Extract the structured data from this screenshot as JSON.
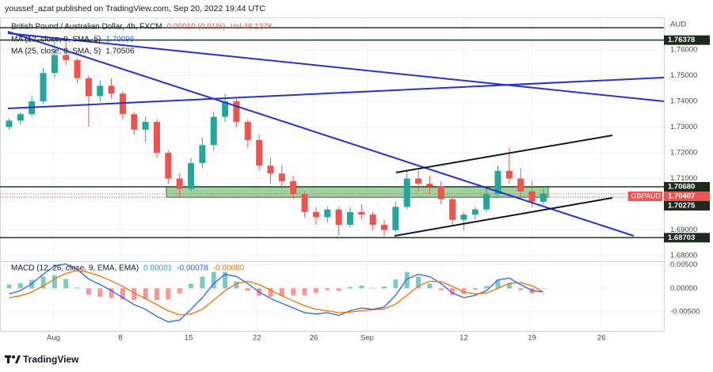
{
  "header": {
    "author_line": "youssef_azat published on TradingView.com, Sep 20, 2022 19:44 UTC"
  },
  "footer": {
    "brand": "TradingView"
  },
  "chart_data": {
    "type": "candlestick",
    "symbol": "British Pound / Australian Dollar, 4h, FXCM",
    "change": "0.00010 (0.01%)",
    "volume": "Vol 48.137K",
    "currency": "AUD",
    "up_color": "#26a69a",
    "down_color": "#ef5350",
    "moving_averages": [
      {
        "name": "MA (12, close, 0, SMA, 5)",
        "value": 1.70096,
        "color": "#2962ff"
      },
      {
        "name": "MA (25, close, 0, SMA, 5)",
        "value": 1.70506,
        "color": "#131722"
      }
    ],
    "xlim": [
      -0.8,
      57.6
    ],
    "xticks": [
      {
        "value": 3.9,
        "label": "Aug"
      },
      {
        "value": 9.8,
        "label": "8"
      },
      {
        "value": 15.8,
        "label": "15"
      },
      {
        "value": 21.8,
        "label": "22"
      },
      {
        "value": 26.8,
        "label": "26"
      },
      {
        "value": 31.5,
        "label": "Sep"
      },
      {
        "value": 40,
        "label": "12"
      },
      {
        "value": 46,
        "label": "19"
      },
      {
        "value": 52.1,
        "label": "26"
      }
    ],
    "ylim": [
      1.6779,
      1.7726
    ],
    "yticks": [
      {
        "value": 1.68,
        "label": "1.68000"
      },
      {
        "value": 1.69,
        "label": "1.69000"
      },
      {
        "value": 1.71,
        "label": "1.71000"
      },
      {
        "value": 1.72,
        "label": "1.72000"
      },
      {
        "value": 1.73,
        "label": "1.73000"
      },
      {
        "value": 1.74,
        "label": "1.74000"
      },
      {
        "value": 1.75,
        "label": "1.75000"
      },
      {
        "value": 1.76,
        "label": "1.76000"
      }
    ],
    "grid": true,
    "levels": [
      {
        "value": 1.76378
      },
      {
        "value": 1.7068,
        "label": "1.70680"
      },
      {
        "value": 1.70275
      },
      {
        "value": 1.68703
      }
    ],
    "last_price": {
      "name": "GBPAUD",
      "value": 1.70407,
      "color": "#ef5350"
    },
    "ohlc": [
      [
        1.73,
        1.7335,
        1.729,
        1.7325
      ],
      [
        1.7325,
        1.736,
        1.731,
        1.735
      ],
      [
        1.735,
        1.742,
        1.734,
        1.74
      ],
      [
        1.74,
        1.753,
        1.739,
        1.751
      ],
      [
        1.751,
        1.764,
        1.749,
        1.758
      ],
      [
        1.758,
        1.763,
        1.754,
        1.756
      ],
      [
        1.756,
        1.757,
        1.747,
        1.749
      ],
      [
        1.749,
        1.75,
        1.73,
        1.742
      ],
      [
        1.742,
        1.748,
        1.74,
        1.746
      ],
      [
        1.746,
        1.749,
        1.741,
        1.743
      ],
      [
        1.743,
        1.744,
        1.733,
        1.735
      ],
      [
        1.735,
        1.736,
        1.727,
        1.729
      ],
      [
        1.729,
        1.734,
        1.724,
        1.732
      ],
      [
        1.732,
        1.733,
        1.718,
        1.72
      ],
      [
        1.72,
        1.721,
        1.708,
        1.71
      ],
      [
        1.71,
        1.712,
        1.703,
        1.706
      ],
      [
        1.706,
        1.718,
        1.705,
        1.716
      ],
      [
        1.716,
        1.726,
        1.714,
        1.723
      ],
      [
        1.723,
        1.736,
        1.721,
        1.734
      ],
      [
        1.734,
        1.743,
        1.732,
        1.74
      ],
      [
        1.74,
        1.741,
        1.73,
        1.732
      ],
      [
        1.732,
        1.733,
        1.722,
        1.725
      ],
      [
        1.725,
        1.727,
        1.713,
        1.715
      ],
      [
        1.715,
        1.718,
        1.708,
        1.712
      ],
      [
        1.712,
        1.715,
        1.706,
        1.709
      ],
      [
        1.709,
        1.711,
        1.702,
        1.704
      ],
      [
        1.704,
        1.705,
        1.695,
        1.697
      ],
      [
        1.697,
        1.699,
        1.692,
        1.695
      ],
      [
        1.695,
        1.699,
        1.693,
        1.698
      ],
      [
        1.698,
        1.699,
        1.688,
        1.692
      ],
      [
        1.692,
        1.699,
        1.691,
        1.697
      ],
      [
        1.697,
        1.7,
        1.694,
        1.696
      ],
      [
        1.696,
        1.697,
        1.69,
        1.692
      ],
      [
        1.692,
        1.694,
        1.687,
        1.69
      ],
      [
        1.69,
        1.701,
        1.689,
        1.699
      ],
      [
        1.699,
        1.713,
        1.698,
        1.71
      ],
      [
        1.71,
        1.713,
        1.705,
        1.708
      ],
      [
        1.708,
        1.711,
        1.704,
        1.707
      ],
      [
        1.707,
        1.709,
        1.7,
        1.702
      ],
      [
        1.702,
        1.703,
        1.692,
        1.694
      ],
      [
        1.694,
        1.697,
        1.69,
        1.696
      ],
      [
        1.696,
        1.699,
        1.694,
        1.698
      ],
      [
        1.698,
        1.706,
        1.697,
        1.704
      ],
      [
        1.704,
        1.715,
        1.703,
        1.713
      ],
      [
        1.713,
        1.722,
        1.708,
        1.71
      ],
      [
        1.71,
        1.714,
        1.702,
        1.705
      ],
      [
        1.705,
        1.709,
        1.699,
        1.701
      ],
      [
        1.701,
        1.706,
        1.7,
        1.7041
      ]
    ],
    "macd": {
      "title": "MACD (12, 26, close, 9, EMA, EMA)",
      "legend_values": [
        1e-05,
        -0.00078,
        {
          "value": -0.0008,
          "label": "-0.00080"
        }
      ],
      "ylim": [
        -0.0091,
        0.0058
      ],
      "yticks": [
        {
          "value": 0.005,
          "label": "0.00500"
        },
        {
          "value": 0,
          "label": "0.00000"
        },
        {
          "value": -0.005,
          "label": "-0.00500"
        }
      ],
      "histogram_colors": [
        "#26a69a",
        "#ef5350"
      ],
      "histogram": [
        0.0008,
        0.0011,
        0.0018,
        0.0025,
        0.0028,
        0.002,
        0.0002,
        -0.0014,
        -0.0018,
        -0.0021,
        -0.0024,
        -0.0025,
        -0.0023,
        -0.0025,
        -0.0024,
        -0.0011,
        0.001,
        0.0025,
        0.0035,
        0.0035,
        0.0015,
        -0.0005,
        -0.0016,
        -0.0018,
        -0.0016,
        -0.0015,
        -0.0015,
        -0.001,
        -0.0004,
        -0.0006,
        0.0003,
        0.0006,
        0.0001,
        0.0004,
        0.0019,
        0.0035,
        0.0025,
        0.001,
        -0.0004,
        -0.0014,
        -0.0012,
        -0.0003,
        0.0005,
        0.0018,
        0.0011,
        -0.0004,
        -0.0011,
        1e-05
      ],
      "macd_color": "#2962ff",
      "macd_line": [
        -0.0012,
        -0.0005,
        0.001,
        0.003,
        0.0048,
        0.0052,
        0.004,
        0.002,
        0.0008,
        -0.0005,
        -0.002,
        -0.0035,
        -0.0045,
        -0.006,
        -0.0072,
        -0.0068,
        -0.0045,
        -0.002,
        0.001,
        0.003,
        0.0025,
        0.001,
        -0.0008,
        -0.0022,
        -0.0032,
        -0.0042,
        -0.0052,
        -0.0055,
        -0.0052,
        -0.0058,
        -0.0048,
        -0.0042,
        -0.0045,
        -0.004,
        -0.0015,
        0.002,
        0.003,
        0.0025,
        0.001,
        -0.001,
        -0.002,
        -0.0015,
        -0.0005,
        0.0018,
        0.0022,
        0.0008,
        -0.0005,
        -0.00078
      ],
      "signal_color": "#ff6d00",
      "signal_line": [
        -0.002,
        -0.0016,
        -0.0008,
        0.0005,
        0.002,
        0.0032,
        0.0038,
        0.0034,
        0.0026,
        0.0016,
        0.0004,
        -0.001,
        -0.0022,
        -0.0035,
        -0.0048,
        -0.0057,
        -0.0055,
        -0.0045,
        -0.0025,
        -0.0005,
        0.001,
        0.0015,
        0.0008,
        -0.0004,
        -0.0016,
        -0.0027,
        -0.0037,
        -0.0045,
        -0.0048,
        -0.0052,
        -0.0051,
        -0.0048,
        -0.0046,
        -0.0044,
        -0.0034,
        -0.0015,
        0.0005,
        0.0015,
        0.0014,
        0.0004,
        -0.0008,
        -0.0012,
        -0.001,
        0.0,
        0.0011,
        0.0012,
        0.0006,
        -0.0008
      ]
    }
  }
}
